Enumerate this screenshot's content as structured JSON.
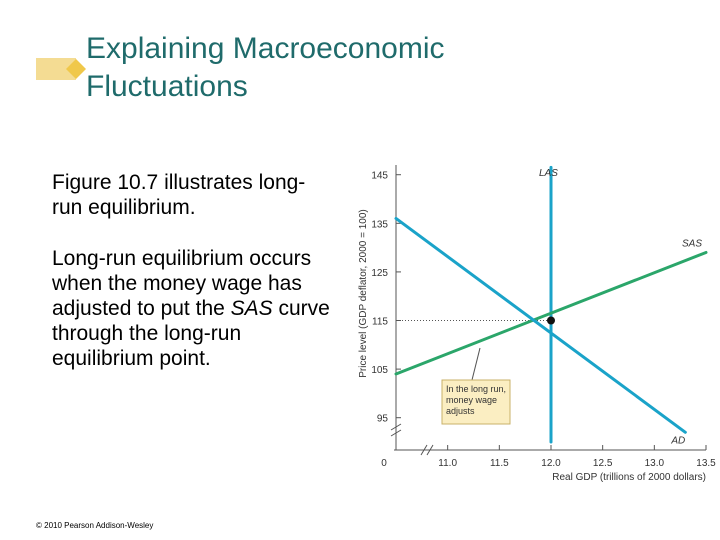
{
  "slide": {
    "title_line1": "Explaining Macroeconomic",
    "title_line2": "Fluctuations",
    "paragraph1": "Figure 10.7 illustrates long-run equilibrium.",
    "paragraph2_pre": "Long-run equilibrium occurs when the money wage has adjusted to put the ",
    "paragraph2_em": "SAS",
    "paragraph2_post": " curve through the long-run equilibrium point.",
    "copyright": "© 2010 Pearson Addison-Wesley",
    "accent_color": "#1f6b6b",
    "deco_color": "#f4dc93"
  },
  "chart_data": {
    "type": "line",
    "xlabel": "Real GDP (trillions of 2000 dollars)",
    "ylabel": "Price level (GDP deflator, 2000 = 100)",
    "x_ticks": [
      "11.0",
      "11.5",
      "12.0",
      "12.5",
      "13.0",
      "13.5"
    ],
    "y_ticks": [
      "95",
      "105",
      "115",
      "125",
      "135",
      "145"
    ],
    "origin_label": "0",
    "xlim": [
      10.5,
      13.5
    ],
    "ylim": [
      90,
      147
    ],
    "series": [
      {
        "name": "LAS",
        "color": "#1aa3c9",
        "points": [
          [
            12.0,
            146.5
          ],
          [
            12.0,
            90
          ]
        ]
      },
      {
        "name": "SAS",
        "color": "#2ba66a",
        "points": [
          [
            10.5,
            104
          ],
          [
            13.5,
            129
          ]
        ]
      },
      {
        "name": "AD",
        "color": "#1aa3c9",
        "points": [
          [
            10.5,
            136
          ],
          [
            13.3,
            92
          ]
        ]
      }
    ],
    "equilibrium": {
      "x": 12.0,
      "y": 115
    },
    "annotation": "In the long run, money wage adjusts"
  }
}
